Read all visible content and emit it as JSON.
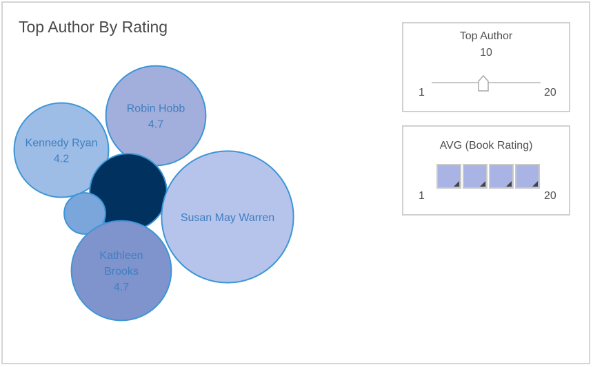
{
  "chart_data": {
    "type": "bubble",
    "title": "Top Author By Rating",
    "bubbles": [
      {
        "author": "Robin Hobb",
        "value_label": "4.7",
        "size": 4.7,
        "color": "#a2aedc"
      },
      {
        "author": "Kennedy Ryan",
        "value_label": "4.2",
        "size": 4.2,
        "color": "#9dbde6"
      },
      {
        "author": "",
        "value_label": "",
        "size": 2.8,
        "color": "#00315f"
      },
      {
        "author": "",
        "value_label": "",
        "size": 0.8,
        "color": "#7aa6dc"
      },
      {
        "author": "Susan May Warren",
        "value_label": "",
        "size": 8.2,
        "color": "#b6c3ea"
      },
      {
        "author": "Kathleen Brooks",
        "value_label": "4.7",
        "size": 4.7,
        "color": "#7f93cc"
      }
    ]
  },
  "controls": {
    "top_author": {
      "title": "Top Author",
      "value": "10",
      "min": "1",
      "max": "20",
      "level": 10
    },
    "avg_rating": {
      "title": "AVG (Book Rating)",
      "min": "1",
      "max": "20",
      "cell_count": 4
    }
  },
  "colors": {
    "bubble_stroke": "#3d95d6",
    "label_text": "#3f7fc0",
    "label_on_dark": "#ffffff"
  }
}
